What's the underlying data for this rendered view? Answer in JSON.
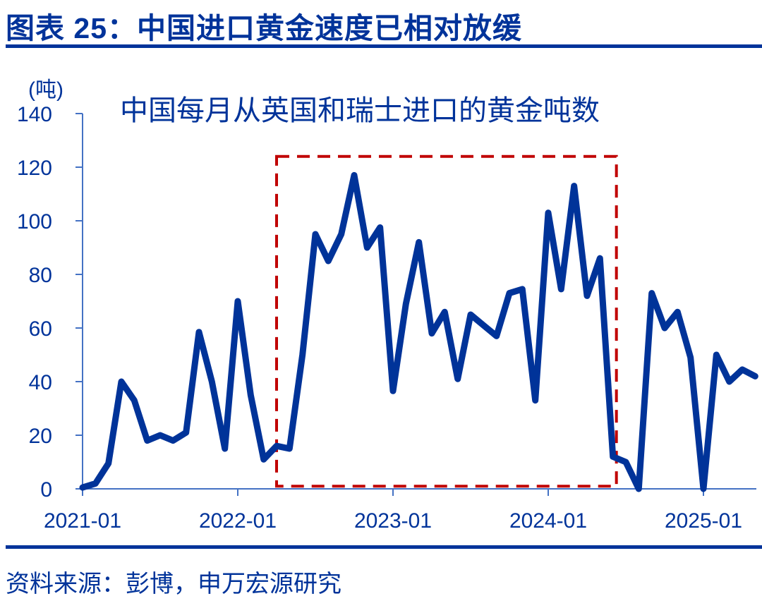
{
  "header": {
    "title": "图表 25：中国进口黄金速度已相对放缓"
  },
  "footer": {
    "source": "资料来源：彭博，申万宏源研究"
  },
  "colors": {
    "brand_blue": "#00339A",
    "axis_blue": "#4472C4",
    "line_blue": "#003399",
    "highlight_red": "#C00000"
  },
  "chart_data": {
    "type": "line",
    "title": "中国每月从英国和瑞士进口的黄金吨数",
    "xlabel": "",
    "ylabel": "(吨)",
    "ylim": [
      0,
      140
    ],
    "yticks": [
      0,
      20,
      40,
      60,
      80,
      100,
      120,
      140
    ],
    "xtick_labels": [
      "2021-01",
      "2022-01",
      "2023-01",
      "2024-01",
      "2025-01"
    ],
    "grid": false,
    "legend": null,
    "annotations": [
      {
        "type": "dashed-rectangle",
        "color": "#C00000",
        "x_start": "2022-04",
        "x_end": "2024-06",
        "y_range": [
          1,
          124
        ]
      }
    ],
    "x": [
      "2021-01",
      "2021-02",
      "2021-03",
      "2021-04",
      "2021-05",
      "2021-06",
      "2021-07",
      "2021-08",
      "2021-09",
      "2021-10",
      "2021-11",
      "2021-12",
      "2022-01",
      "2022-02",
      "2022-03",
      "2022-04",
      "2022-05",
      "2022-06",
      "2022-07",
      "2022-08",
      "2022-09",
      "2022-10",
      "2022-11",
      "2022-12",
      "2023-01",
      "2023-02",
      "2023-03",
      "2023-04",
      "2023-05",
      "2023-06",
      "2023-07",
      "2023-08",
      "2023-09",
      "2023-10",
      "2023-11",
      "2023-12",
      "2024-01",
      "2024-02",
      "2024-03",
      "2024-04",
      "2024-05",
      "2024-06",
      "2024-07",
      "2024-08",
      "2024-09",
      "2024-10",
      "2024-11",
      "2024-12",
      "2025-01",
      "2025-02",
      "2025-03",
      "2025-04",
      "2025-05"
    ],
    "series": [
      {
        "name": "中国每月从英国和瑞士进口的黄金吨数",
        "values": [
          0.5,
          2,
          9.5,
          40,
          33,
          18,
          20,
          18,
          21,
          58.5,
          40,
          15,
          70,
          35,
          11,
          16,
          15,
          50,
          95,
          85,
          95,
          117,
          90,
          97.5,
          36.5,
          69,
          92,
          58,
          66,
          41,
          65,
          61,
          57,
          73,
          74.5,
          33,
          103,
          74.5,
          113,
          72,
          86,
          12,
          10,
          0,
          73,
          60,
          66,
          49,
          0,
          50,
          40,
          44.5,
          42
        ]
      }
    ]
  }
}
